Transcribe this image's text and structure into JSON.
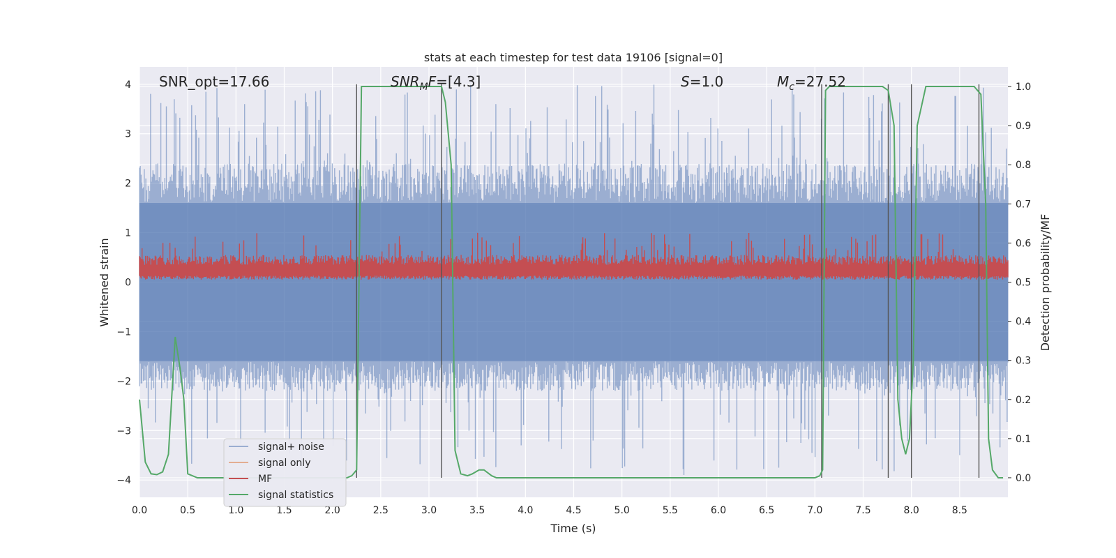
{
  "chart_data": {
    "type": "line",
    "title": "stats at each timestep for test data 19106 [signal=0]",
    "xlabel": "Time (s)",
    "ylabel_left": "Whitened strain",
    "ylabel_right": "Detection probability/MF",
    "xlim": [
      0.0,
      9.0
    ],
    "ylim_left": [
      -4.35,
      4.35
    ],
    "ylim_right": [
      -0.05,
      1.05
    ],
    "xticks": [
      0.0,
      0.5,
      1.0,
      1.5,
      2.0,
      2.5,
      3.0,
      3.5,
      4.0,
      4.5,
      5.0,
      5.5,
      6.0,
      6.5,
      7.0,
      7.5,
      8.0,
      8.5
    ],
    "xtick_labels": [
      "0.0",
      "0.5",
      "1.0",
      "1.5",
      "2.0",
      "2.5",
      "3.0",
      "3.5",
      "4.0",
      "4.5",
      "5.0",
      "5.5",
      "6.0",
      "6.5",
      "7.0",
      "7.5",
      "8.0",
      "8.5"
    ],
    "yticks_left": [
      -4,
      -3,
      -2,
      -1,
      0,
      1,
      2,
      3,
      4
    ],
    "ytick_labels_left": [
      "−4",
      "−3",
      "−2",
      "−1",
      "0",
      "1",
      "2",
      "3",
      "4"
    ],
    "yticks_right": [
      0.0,
      0.1,
      0.2,
      0.3,
      0.4,
      0.5,
      0.6,
      0.7,
      0.8,
      0.9,
      1.0
    ],
    "ytick_labels_right": [
      "0.0",
      "0.1",
      "0.2",
      "0.3",
      "0.4",
      "0.5",
      "0.6",
      "0.7",
      "0.8",
      "0.9",
      "1.0"
    ],
    "annotations": {
      "snr_opt": "SNR_opt=17.66",
      "snr_mf": "=[4.3]",
      "s": "=1.0",
      "mc": "=27.52"
    },
    "legend": {
      "position": "lower-left",
      "entries": [
        {
          "label": "signal+ noise",
          "color": "#4c72b0"
        },
        {
          "label": "signal only",
          "color": "#dd8452"
        },
        {
          "label": "MF",
          "color": "#c44e52"
        },
        {
          "label": "signal statistics",
          "color": "#55a868"
        }
      ]
    },
    "noise_band": {
      "typical_abs": 1.6,
      "max_pos": 4.0,
      "min_neg": -3.9
    },
    "mf_band": {
      "low": 0.05,
      "typical_high": 0.55,
      "max": 1.0
    },
    "vertical_lines": [
      2.25,
      3.13,
      7.07,
      7.76,
      8.0,
      8.7
    ],
    "signal_statistics": {
      "x": [
        0.0,
        0.06,
        0.12,
        0.18,
        0.24,
        0.3,
        0.37,
        0.42,
        0.46,
        0.5,
        0.6,
        0.9,
        1.5,
        2.15,
        2.2,
        2.25,
        2.28,
        2.3,
        2.35,
        2.6,
        3.0,
        3.13,
        3.17,
        3.23,
        3.27,
        3.33,
        3.4,
        3.45,
        3.52,
        3.57,
        3.65,
        3.7,
        4.5,
        6.5,
        7.0,
        7.05,
        7.08,
        7.11,
        7.15,
        7.3,
        7.7,
        7.76,
        7.82,
        7.86,
        7.9,
        7.94,
        7.98,
        8.02,
        8.06,
        8.15,
        8.4,
        8.65,
        8.72,
        8.77,
        8.8,
        8.84,
        8.9,
        8.95
      ],
      "y": [
        0.2,
        0.04,
        0.01,
        0.008,
        0.015,
        0.06,
        0.36,
        0.28,
        0.2,
        0.01,
        0.0,
        0.0,
        0.0,
        0.0,
        0.005,
        0.02,
        0.6,
        1.0,
        1.0,
        1.0,
        1.0,
        1.0,
        0.96,
        0.8,
        0.07,
        0.01,
        0.005,
        0.01,
        0.02,
        0.02,
        0.005,
        0.0,
        0.0,
        0.0,
        0.0,
        0.005,
        0.02,
        0.99,
        1.0,
        1.0,
        1.0,
        0.99,
        0.9,
        0.2,
        0.1,
        0.06,
        0.1,
        0.3,
        0.9,
        1.0,
        1.0,
        1.0,
        0.98,
        0.7,
        0.1,
        0.02,
        0.0,
        0.0
      ]
    }
  }
}
